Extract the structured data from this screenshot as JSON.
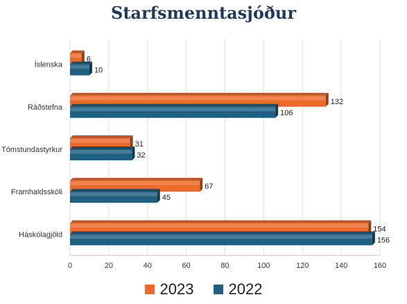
{
  "chart_data": {
    "type": "bar",
    "orientation": "horizontal",
    "title": "Starfsmenntasjóður",
    "categories": [
      "Íslenska",
      "Ráðstefna",
      "Tómstundastyrkur",
      "Framhaldsskóli",
      "Háskólagjöld"
    ],
    "series": [
      {
        "name": "2023",
        "color": "#ed6a2a",
        "values": [
          6,
          132,
          31,
          67,
          154
        ]
      },
      {
        "name": "2022",
        "color": "#1f5f82",
        "values": [
          10,
          106,
          32,
          45,
          156
        ]
      }
    ],
    "xlim": [
      0,
      160
    ],
    "xticks": [
      0,
      20,
      40,
      60,
      80,
      100,
      120,
      140,
      160
    ],
    "grid": true,
    "legend_position": "bottom"
  }
}
